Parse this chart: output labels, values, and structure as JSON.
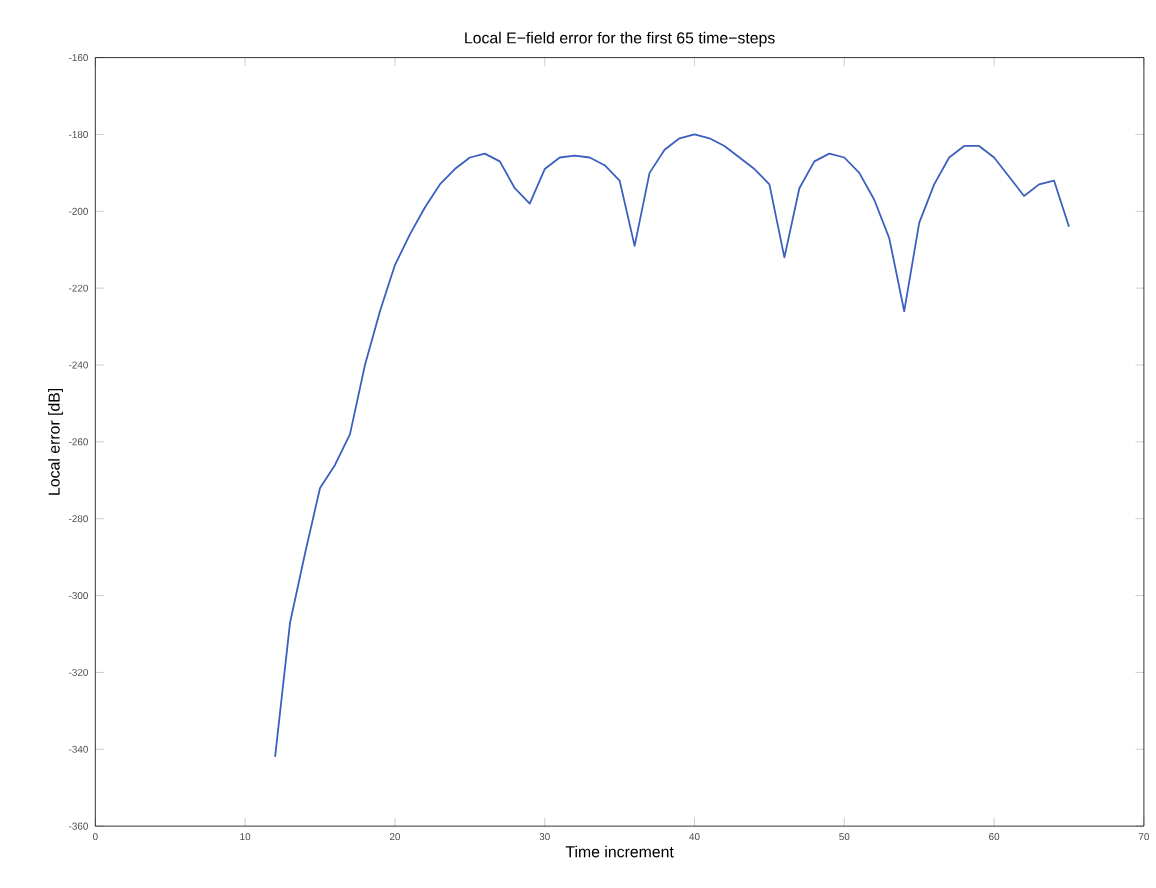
{
  "chart_data": {
    "type": "line",
    "title": "Local E−field error for the first 65 time−steps",
    "xlabel": "Time increment",
    "ylabel": "Local error [dB]",
    "x": [
      12,
      13,
      14,
      15,
      16,
      17,
      18,
      19,
      20,
      21,
      22,
      23,
      24,
      25,
      26,
      27,
      28,
      29,
      30,
      31,
      32,
      33,
      34,
      35,
      36,
      37,
      38,
      39,
      40,
      41,
      42,
      43,
      44,
      45,
      46,
      47,
      48,
      49,
      50,
      51,
      52,
      53,
      54,
      55,
      56,
      57,
      58,
      59,
      60,
      61,
      62,
      63,
      64,
      65
    ],
    "series": [
      {
        "color": "#3a5fbf",
        "values": [
          -342,
          -307,
          -289,
          -272,
          -266,
          -258,
          -240,
          -226,
          -214,
          -206,
          -199,
          -193,
          -189,
          -186,
          -185,
          -187,
          -194,
          -198,
          -189,
          -186,
          -185.5,
          -186,
          -188,
          -192,
          -209,
          -190,
          -184,
          -181,
          -180,
          -181,
          -183,
          -186,
          -189,
          -193,
          -212,
          -194,
          -187,
          -185,
          -186,
          -190,
          -197,
          -207,
          -226,
          -203,
          -193,
          -186,
          -183,
          -183,
          -186,
          -191,
          -196,
          -193,
          -192,
          -204
        ]
      }
    ],
    "xlim": [
      0,
      70
    ],
    "xticks": [
      0,
      10,
      20,
      30,
      40,
      50,
      60,
      70
    ],
    "ylim": [
      -360,
      -160
    ],
    "yticks": [
      -360,
      -340,
      -320,
      -300,
      -280,
      -260,
      -240,
      -220,
      -200,
      -180,
      -160
    ],
    "grid": false,
    "marker": "none",
    "line_style": "solid"
  }
}
